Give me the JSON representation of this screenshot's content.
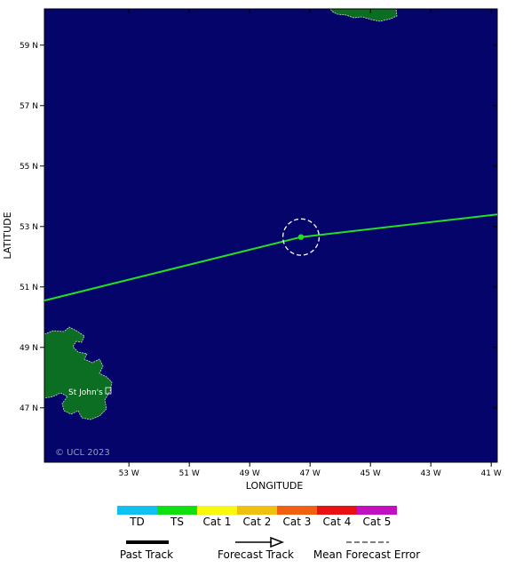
{
  "map": {
    "lon_range": [
      -55.8,
      -40.8
    ],
    "lat_range": [
      45.2,
      60.2
    ],
    "lon_ticks": [
      {
        "lon": -53,
        "label": "53 W"
      },
      {
        "lon": -51,
        "label": "51 W"
      },
      {
        "lon": -49,
        "label": "49 W"
      },
      {
        "lon": -47,
        "label": "47 W"
      },
      {
        "lon": -45,
        "label": "45 W"
      },
      {
        "lon": -43,
        "label": "43 W"
      },
      {
        "lon": -41,
        "label": "41 W"
      }
    ],
    "lat_ticks": [
      {
        "lat": 59,
        "label": "59 N"
      },
      {
        "lat": 57,
        "label": "57 N"
      },
      {
        "lat": 55,
        "label": "55 N"
      },
      {
        "lat": 53,
        "label": "53 N"
      },
      {
        "lat": 51,
        "label": "51 N"
      },
      {
        "lat": 49,
        "label": "49 N"
      },
      {
        "lat": 47,
        "label": "47 N"
      }
    ],
    "xlabel": "LONGITUDE",
    "ylabel": "LATITUDE",
    "copyright": "© UCL 2023",
    "city_label": "St John's",
    "colors": {
      "ocean": "#04046a",
      "land": "#0b6e22",
      "coast": "#cfd8d0",
      "track": "#22e022"
    },
    "storm": {
      "position": {
        "lon": -47.3,
        "lat": 52.65
      },
      "category": "TS",
      "track": [
        {
          "lon": -55.8,
          "lat": 50.55
        },
        {
          "lon": -47.3,
          "lat": 52.65
        },
        {
          "lon": -40.8,
          "lat": 53.4
        }
      ],
      "error_radius_deg": 0.6
    }
  },
  "legend": {
    "categories": [
      {
        "label": "TD",
        "color": "#10c0f0"
      },
      {
        "label": "TS",
        "color": "#10e010"
      },
      {
        "label": "Cat 1",
        "color": "#f8f810"
      },
      {
        "label": "Cat 2",
        "color": "#f0c010"
      },
      {
        "label": "Cat 3",
        "color": "#f06010"
      },
      {
        "label": "Cat 4",
        "color": "#e81010"
      },
      {
        "label": "Cat 5",
        "color": "#c010c0"
      }
    ],
    "past_track": "Past Track",
    "forecast_track": "Forecast Track",
    "mean_error": "Mean Forecast Error"
  }
}
